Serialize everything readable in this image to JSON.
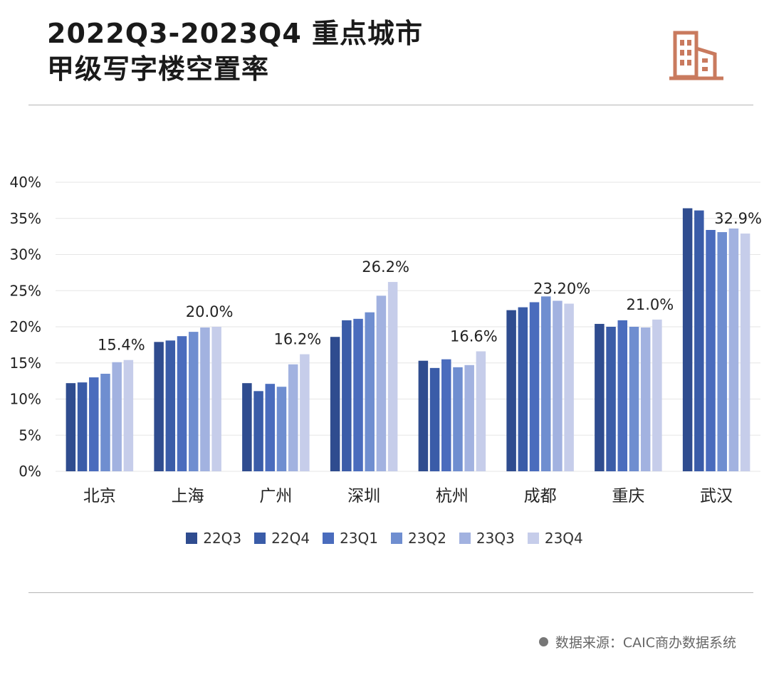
{
  "title": {
    "line1": "2022Q3-2023Q4 重点城市",
    "line2": "甲级写字楼空置率"
  },
  "icon": "building-icon",
  "source": "数据来源：CAIC商办数据系统",
  "colors": {
    "series": [
      "#2f4c8f",
      "#3a5ca8",
      "#4a6cbd",
      "#6f8ed0",
      "#a2b2e0",
      "#c6cdea"
    ],
    "icon": "#c97a5e",
    "grid": "#e6e6e6"
  },
  "chart_data": {
    "type": "bar",
    "categories": [
      "北京",
      "上海",
      "广州",
      "深圳",
      "杭州",
      "成都",
      "重庆",
      "武汉"
    ],
    "series": [
      {
        "name": "22Q3",
        "values": [
          12.2,
          17.9,
          12.2,
          18.6,
          15.3,
          22.3,
          20.4,
          36.4
        ]
      },
      {
        "name": "22Q4",
        "values": [
          12.3,
          18.1,
          11.1,
          20.9,
          14.3,
          22.7,
          20.0,
          36.1
        ]
      },
      {
        "name": "23Q1",
        "values": [
          13.0,
          18.7,
          12.1,
          21.1,
          15.5,
          23.4,
          20.9,
          33.4
        ]
      },
      {
        "name": "23Q2",
        "values": [
          13.5,
          19.3,
          11.7,
          22.0,
          14.4,
          24.2,
          20.0,
          33.1
        ]
      },
      {
        "name": "23Q3",
        "values": [
          15.1,
          19.9,
          14.8,
          24.3,
          14.7,
          23.6,
          19.9,
          33.6
        ]
      },
      {
        "name": "23Q4",
        "values": [
          15.4,
          20.0,
          16.2,
          26.2,
          16.6,
          23.2,
          21.0,
          32.9
        ]
      }
    ],
    "data_labels": [
      "15.4%",
      "20.0%",
      "16.2%",
      "26.2%",
      "16.6%",
      "23.20%",
      "21.0%",
      "32.9%"
    ],
    "y_ticks": [
      "0%",
      "5%",
      "10%",
      "15%",
      "20%",
      "25%",
      "30%",
      "35%",
      "40%"
    ],
    "ylim": [
      0,
      40
    ],
    "grid": true,
    "legend_position": "bottom"
  }
}
